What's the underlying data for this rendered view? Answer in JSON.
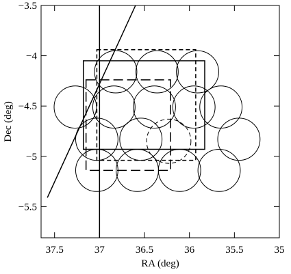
{
  "chart_data": {
    "type": "sky-map",
    "x_label": "RA (deg)",
    "y_label": "Dec (deg)",
    "xlim": [
      37.65,
      35
    ],
    "ylim": [
      -5.81,
      -3.5
    ],
    "xticks": [
      37.5,
      37,
      36.5,
      36,
      35.5,
      35
    ],
    "yticks": [
      {
        "value": -5.5,
        "label": "−5.5"
      },
      {
        "value": -5,
        "label": "−5"
      },
      {
        "value": -4.5,
        "label": "−4.5"
      },
      {
        "value": -4,
        "label": "−4"
      },
      {
        "value": -3.5,
        "label": "−3.5"
      }
    ],
    "color": "#000000",
    "circles": [
      {
        "ra": 36.82,
        "dec": -4.16,
        "r": 0.21,
        "style": "solid"
      },
      {
        "ra": 36.36,
        "dec": -4.16,
        "r": 0.21,
        "style": "solid"
      },
      {
        "ra": 35.91,
        "dec": -4.16,
        "r": 0.21,
        "style": "solid"
      },
      {
        "ra": 37.27,
        "dec": -4.51,
        "r": 0.21,
        "style": "solid"
      },
      {
        "ra": 36.84,
        "dec": -4.51,
        "r": 0.21,
        "style": "solid"
      },
      {
        "ra": 36.39,
        "dec": -4.51,
        "r": 0.21,
        "style": "solid"
      },
      {
        "ra": 35.95,
        "dec": -4.51,
        "r": 0.21,
        "style": "solid"
      },
      {
        "ra": 35.65,
        "dec": -4.51,
        "r": 0.21,
        "style": "solid"
      },
      {
        "ra": 37.03,
        "dec": -4.83,
        "r": 0.21,
        "style": "solid"
      },
      {
        "ra": 36.54,
        "dec": -4.83,
        "r": 0.21,
        "style": "solid"
      },
      {
        "ra": 35.45,
        "dec": -4.83,
        "r": 0.21,
        "style": "solid"
      },
      {
        "ra": 37.03,
        "dec": -5.14,
        "r": 0.21,
        "style": "solid"
      },
      {
        "ra": 36.58,
        "dec": -5.14,
        "r": 0.21,
        "style": "solid"
      },
      {
        "ra": 36.11,
        "dec": -5.14,
        "r": 0.21,
        "style": "solid"
      },
      {
        "ra": 35.67,
        "dec": -5.14,
        "r": 0.21,
        "style": "solid"
      },
      {
        "ra": 36.23,
        "dec": -4.85,
        "r": 0.22,
        "style": "dashed"
      }
    ],
    "rectangles": [
      {
        "ra": [
          37.18,
          35.83
        ],
        "dec": [
          -4.05,
          -4.93
        ],
        "style": "solid"
      },
      {
        "ra": [
          37.03,
          35.93
        ],
        "dec": [
          -3.94,
          -5.04
        ],
        "style": "dashed"
      },
      {
        "ra": [
          37.15,
          36.21
        ],
        "dec": [
          -4.24,
          -5.14
        ],
        "style": "long-dashed"
      }
    ],
    "lines": [
      {
        "ra": [
          37.0,
          37.0
        ],
        "dec": [
          -3.5,
          -5.81
        ]
      },
      {
        "ra": [
          37.58,
          36.6
        ],
        "dec": [
          -5.41,
          -3.5
        ]
      }
    ]
  }
}
